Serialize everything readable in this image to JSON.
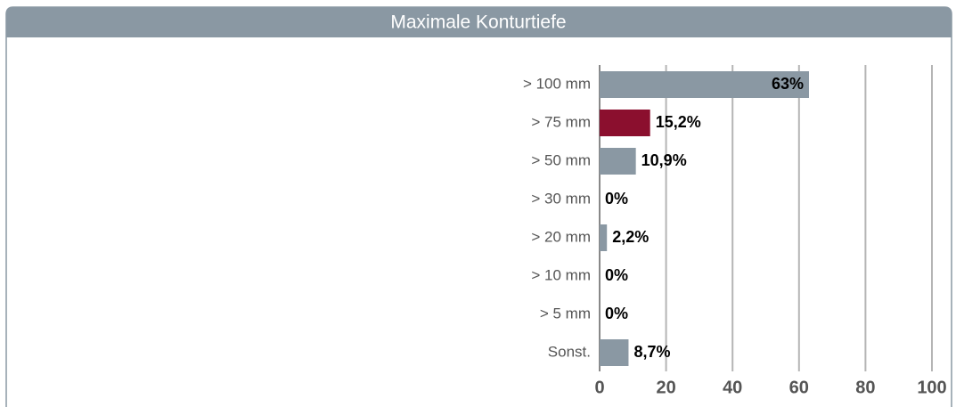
{
  "chart_data": {
    "type": "bar",
    "orientation": "horizontal",
    "title": "Maximale Konturtiefe",
    "categories": [
      "> 100 mm",
      "> 75 mm",
      "> 50 mm",
      "> 30 mm",
      "> 20 mm",
      "> 10 mm",
      "> 5 mm",
      "Sonst."
    ],
    "values": [
      63,
      15.2,
      10.9,
      0,
      2.2,
      0,
      0,
      8.7
    ],
    "value_labels": [
      "63%",
      "15,2%",
      "10,9%",
      "0%",
      "2,2%",
      "0%",
      "0%",
      "8,7%"
    ],
    "colors": [
      "#8a98a3",
      "#8b0f2e",
      "#8a98a3",
      "#8a98a3",
      "#8a98a3",
      "#8a98a3",
      "#8a98a3",
      "#8a98a3"
    ],
    "xlim": [
      0,
      100
    ],
    "xticks": [
      0,
      20,
      40,
      60,
      80,
      100
    ],
    "grid": true
  }
}
